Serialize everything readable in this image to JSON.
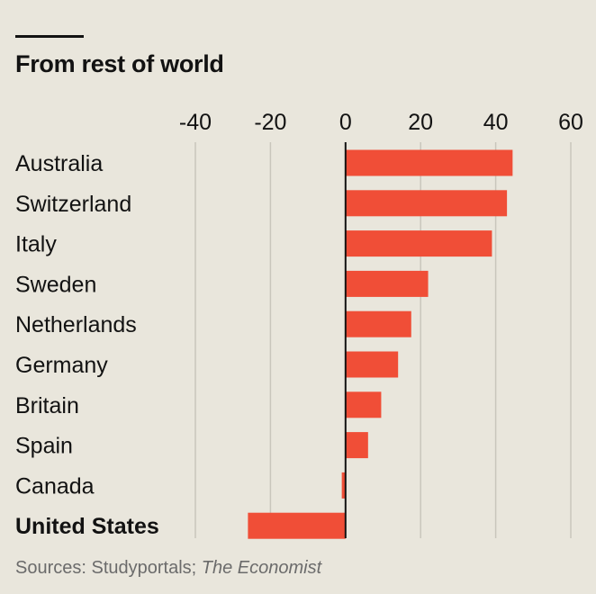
{
  "chart_data": {
    "type": "bar",
    "orientation": "horizontal",
    "title": "From rest of world",
    "categories": [
      "Australia",
      "Switzerland",
      "Italy",
      "Sweden",
      "Netherlands",
      "Germany",
      "Britain",
      "Spain",
      "Canada",
      "United States"
    ],
    "values": [
      44.5,
      43,
      39,
      22,
      17.5,
      14,
      9.5,
      6,
      -1,
      -26
    ],
    "highlight_category": "United States",
    "xlim": [
      -40,
      60
    ],
    "xticks": [
      -40,
      -20,
      0,
      20,
      40,
      60
    ],
    "grid": true,
    "legend": "none",
    "bar_color": "#f04e37",
    "source_prefix": "Sources: Studyportals; ",
    "source_italic": "The Economist"
  }
}
